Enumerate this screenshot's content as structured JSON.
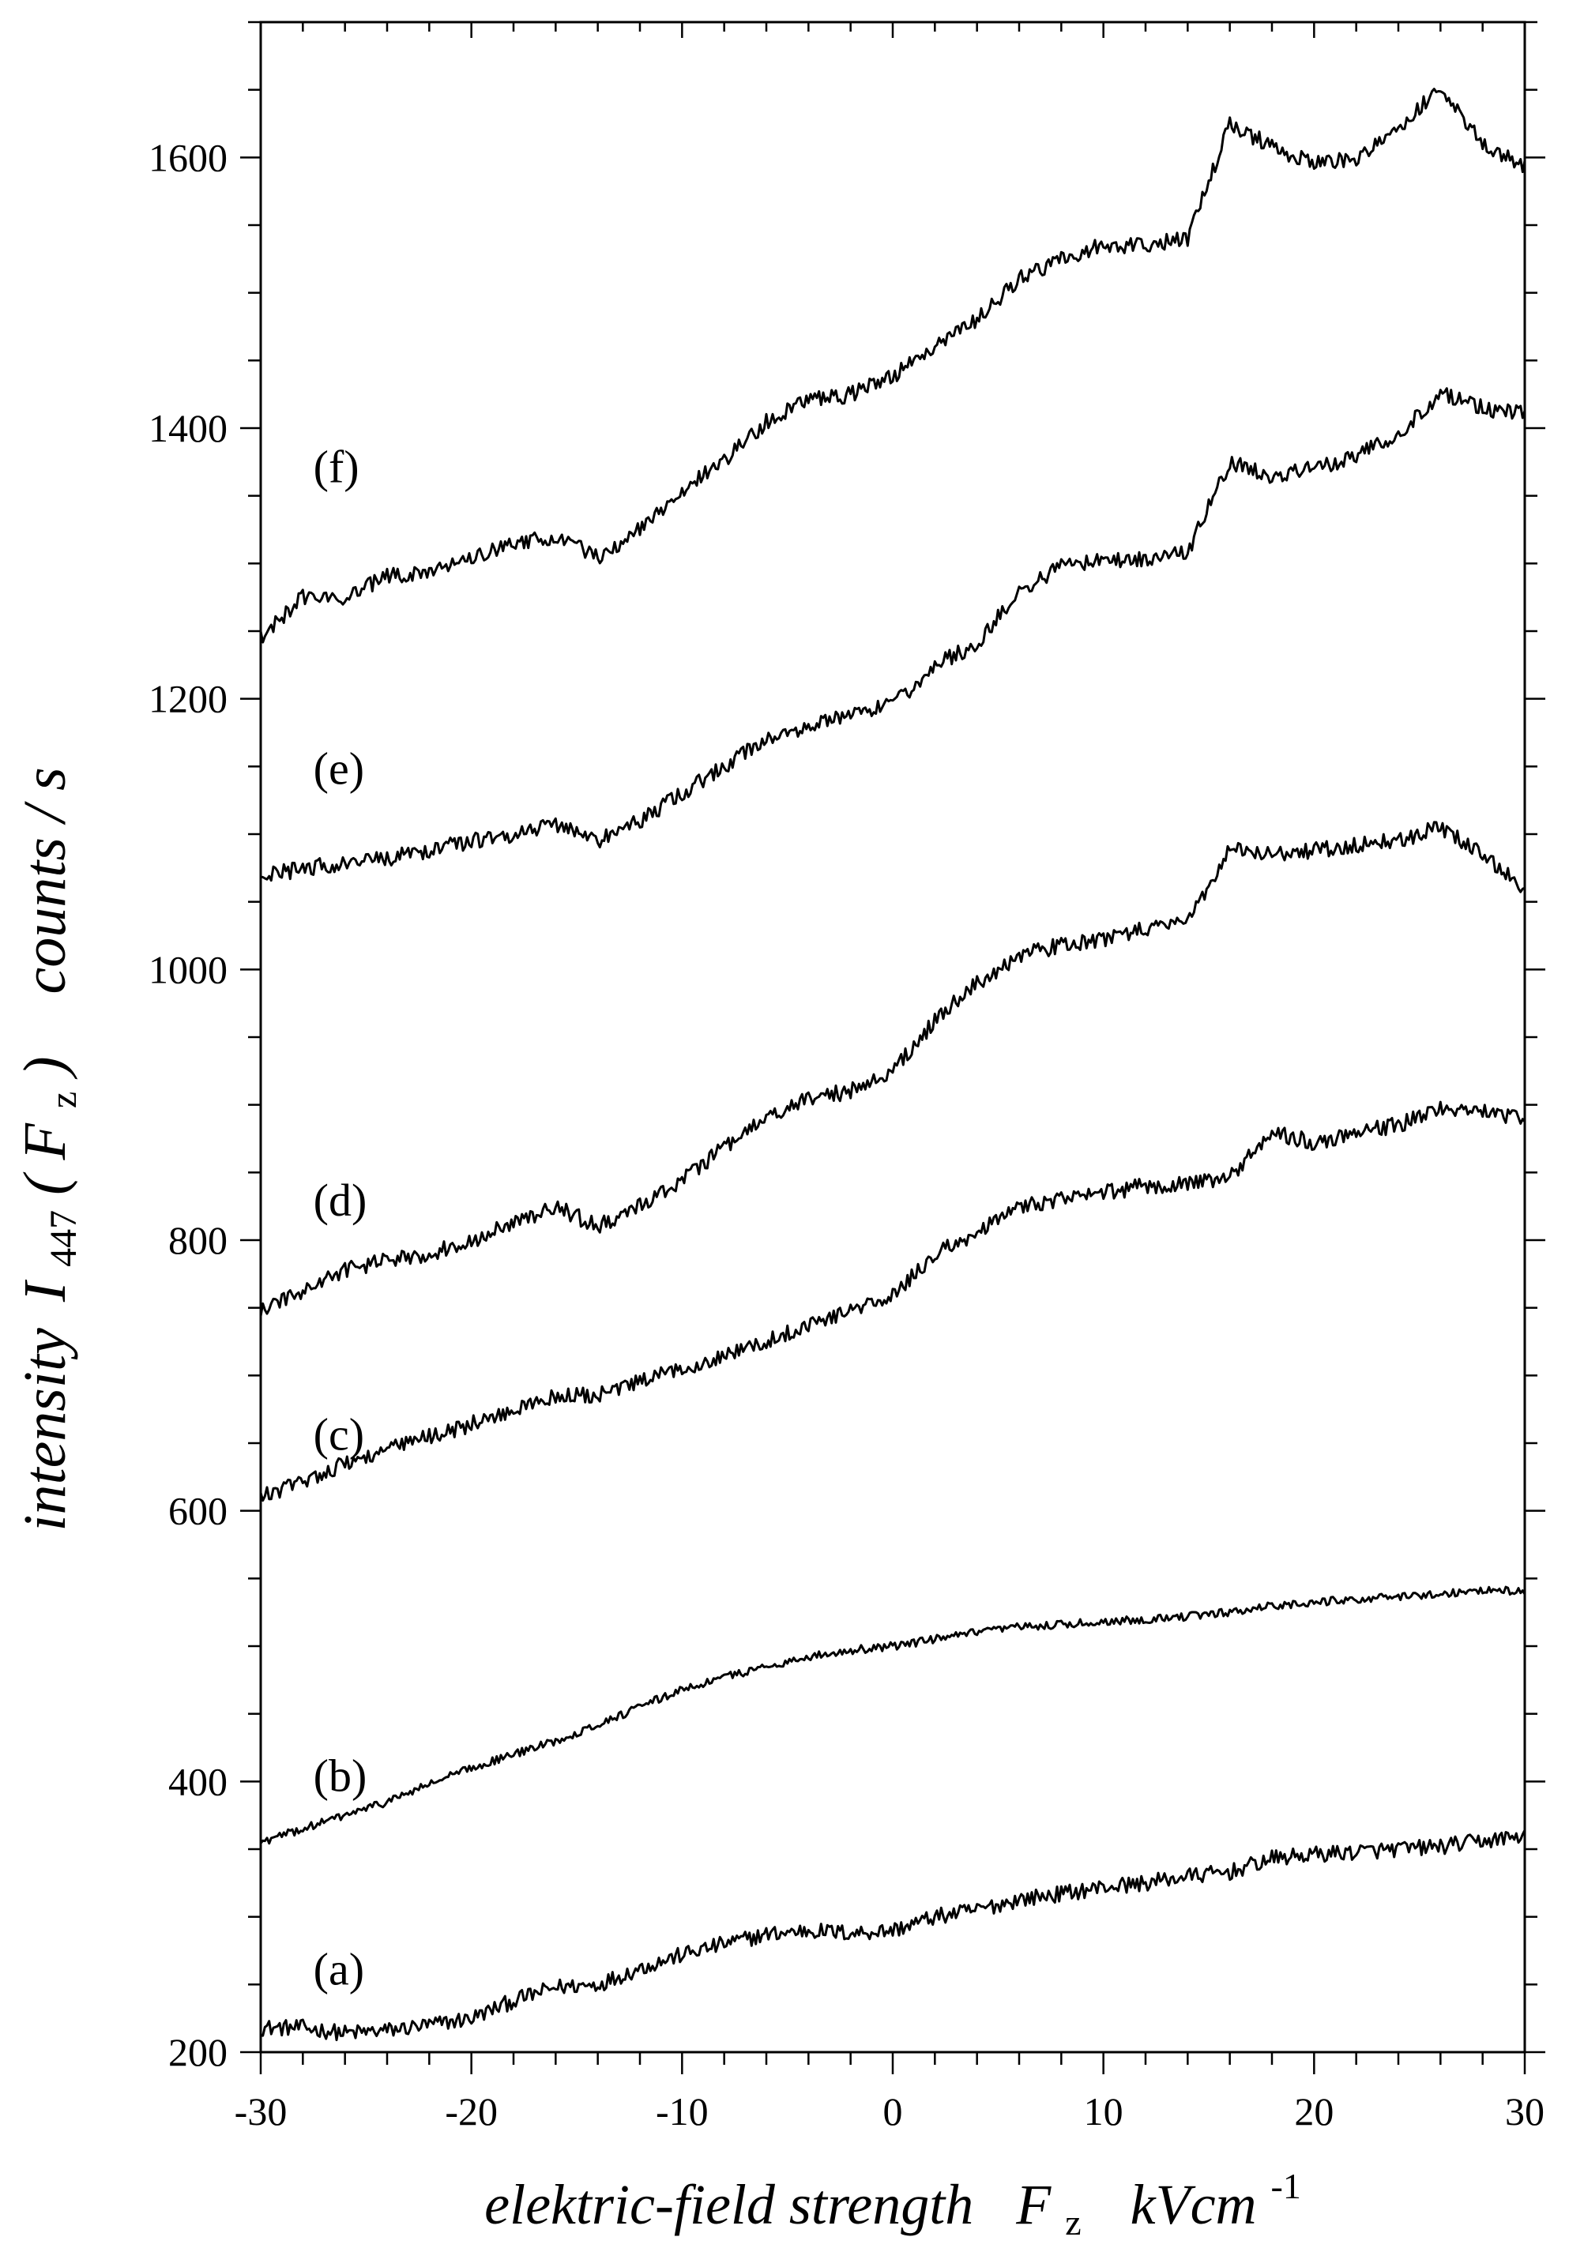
{
  "chart_data": {
    "type": "line",
    "xlabel": {
      "main": "elektric-field strength",
      "symbol": "F",
      "symbol_sub": "z",
      "unit": "kVcm",
      "unit_sup": "-1"
    },
    "ylabel": {
      "main": "intensity",
      "symbol": "I",
      "symbol_sub": "447",
      "arg": "F",
      "arg_sub": "z",
      "unit": "counts / s"
    },
    "xlim": [
      -30,
      30
    ],
    "ylim": [
      200,
      1700
    ],
    "x_ticks": [
      -30,
      -20,
      -10,
      0,
      10,
      20,
      30
    ],
    "x_tick_labels": [
      "-30",
      "-20",
      "-10",
      "0",
      "10",
      "20",
      "30"
    ],
    "y_ticks": [
      200,
      400,
      600,
      800,
      1000,
      1200,
      1400,
      1600
    ],
    "y_tick_labels": [
      "200",
      "400",
      "600",
      "800",
      "1000",
      "1200",
      "1400",
      "1600"
    ],
    "grid": false,
    "legend": "none",
    "x": [
      -30,
      -28,
      -26,
      -24,
      -22,
      -20,
      -18,
      -16,
      -14,
      -12,
      -10,
      -8,
      -6,
      -4,
      -2,
      0,
      2,
      4,
      6,
      8,
      10,
      12,
      14,
      16,
      18,
      20,
      22,
      24,
      26,
      28,
      30
    ],
    "series": [
      {
        "name": "(a)",
        "label_x": -27.5,
        "label_y": 250,
        "values": [
          218,
          218,
          214,
          216,
          220,
          225,
          238,
          248,
          250,
          262,
          272,
          280,
          287,
          290,
          288,
          290,
          300,
          305,
          313,
          317,
          322,
          325,
          330,
          333,
          343,
          346,
          348,
          350,
          352,
          356,
          360
        ]
      },
      {
        "name": "(b)",
        "label_x": -27.5,
        "label_y": 393,
        "values": [
          355,
          365,
          375,
          385,
          398,
          410,
          420,
          430,
          442,
          455,
          468,
          477,
          485,
          492,
          497,
          500,
          505,
          510,
          514,
          516,
          518,
          520,
          522,
          525,
          530,
          532,
          535,
          536,
          539,
          541,
          541
        ]
      },
      {
        "name": "(c)",
        "label_x": -27.5,
        "label_y": 645,
        "values": [
          610,
          622,
          635,
          645,
          655,
          664,
          674,
          685,
          685,
          695,
          705,
          715,
          725,
          738,
          748,
          758,
          790,
          805,
          825,
          830,
          835,
          840,
          842,
          846,
          880,
          872,
          880,
          885,
          898,
          895,
          890
        ]
      },
      {
        "name": "(d)",
        "label_x": -27.5,
        "label_y": 818,
        "values": [
          748,
          762,
          778,
          785,
          790,
          800,
          812,
          825,
          810,
          825,
          845,
          868,
          890,
          905,
          910,
          925,
          962,
          990,
          1010,
          1018,
          1022,
          1030,
          1035,
          1090,
          1085,
          1088,
          1092,
          1095,
          1105,
          1085,
          1060
        ]
      },
      {
        "name": "(e)",
        "label_x": -27.5,
        "label_y": 1137,
        "values": [
          1068,
          1075,
          1078,
          1082,
          1088,
          1095,
          1100,
          1108,
          1095,
          1110,
          1130,
          1150,
          1170,
          1180,
          1188,
          1195,
          1225,
          1240,
          1280,
          1298,
          1302,
          1303,
          1308,
          1375,
          1365,
          1370,
          1380,
          1395,
          1425,
          1415,
          1410
        ]
      },
      {
        "name": "(f)",
        "label_x": -27.5,
        "label_y": 1360,
        "values": [
          1245,
          1275,
          1275,
          1290,
          1295,
          1305,
          1315,
          1320,
          1305,
          1325,
          1355,
          1375,
          1405,
          1420,
          1425,
          1438,
          1460,
          1480,
          1510,
          1525,
          1535,
          1535,
          1540,
          1625,
          1608,
          1595,
          1600,
          1620,
          1652,
          1610,
          1592
        ]
      }
    ]
  }
}
